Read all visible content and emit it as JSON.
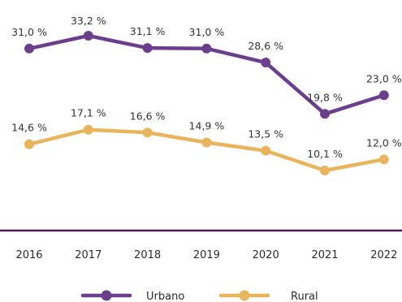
{
  "chart_data": {
    "type": "line",
    "title": "",
    "xlabel": "",
    "ylabel": "",
    "x": [
      "2016",
      "2017",
      "2018",
      "2019",
      "2020",
      "2021",
      "2022"
    ],
    "ylim": [
      0,
      40
    ],
    "grid": false,
    "legend_position": "bottom",
    "series": [
      {
        "name": "Urbano",
        "color": "#6b3f8e",
        "values": [
          31.0,
          33.2,
          31.1,
          31.0,
          28.6,
          19.8,
          23.0
        ],
        "labels": [
          "31,0 %",
          "33,2 %",
          "31,1 %",
          "31,0 %",
          "28,6 %",
          "19,8 %",
          "23,0 %"
        ]
      },
      {
        "name": "Rural",
        "color": "#e8b45c",
        "values": [
          14.6,
          17.1,
          16.6,
          14.9,
          13.5,
          10.1,
          12.0
        ],
        "labels": [
          "14,6 %",
          "17,1 %",
          "16,6 %",
          "14,9 %",
          "13,5 %",
          "10,1 %",
          "12,0 %"
        ]
      }
    ],
    "axis_color": "#4a1e5c"
  }
}
